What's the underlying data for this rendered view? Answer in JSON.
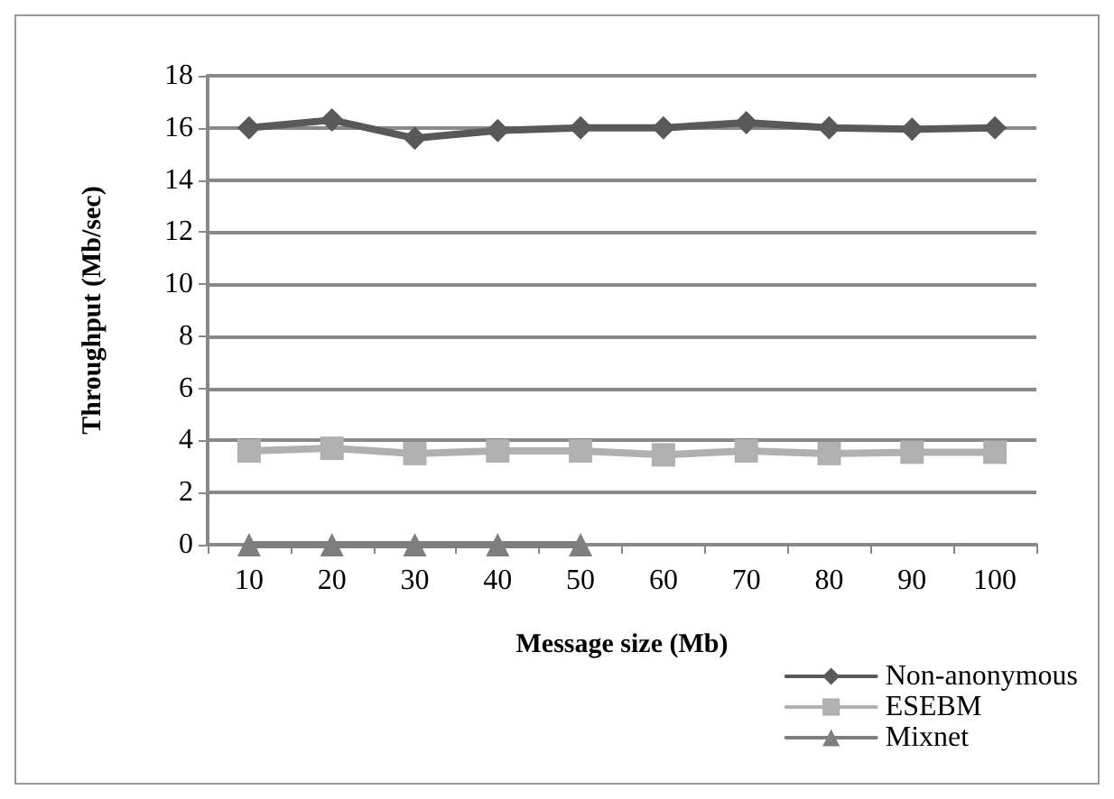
{
  "chart_data": {
    "type": "line",
    "xlabel": "Message size (Mb)",
    "ylabel": "Throughput (Mb/sec)",
    "categories": [
      "10",
      "20",
      "30",
      "40",
      "50",
      "60",
      "70",
      "80",
      "90",
      "100"
    ],
    "series": [
      {
        "name": "Non-anonymous",
        "color": "#595959",
        "marker": "diamond",
        "values": [
          16,
          16.3,
          15.6,
          15.9,
          16,
          16,
          16.2,
          16,
          15.95,
          16
        ]
      },
      {
        "name": "ESEBM",
        "color": "#b0b0b0",
        "marker": "square",
        "values": [
          3.6,
          3.7,
          3.5,
          3.6,
          3.6,
          3.45,
          3.6,
          3.5,
          3.55,
          3.55
        ]
      },
      {
        "name": "Mixnet",
        "color": "#7f7f7f",
        "marker": "triangle",
        "values": [
          0,
          0,
          0,
          0,
          0,
          null,
          null,
          null,
          null,
          null
        ]
      }
    ],
    "ylim": [
      0,
      18
    ],
    "yticks": [
      0,
      2,
      4,
      6,
      8,
      10,
      12,
      14,
      16,
      18
    ],
    "grid": "y",
    "legend": "bottom right",
    "line_style": "solid"
  }
}
